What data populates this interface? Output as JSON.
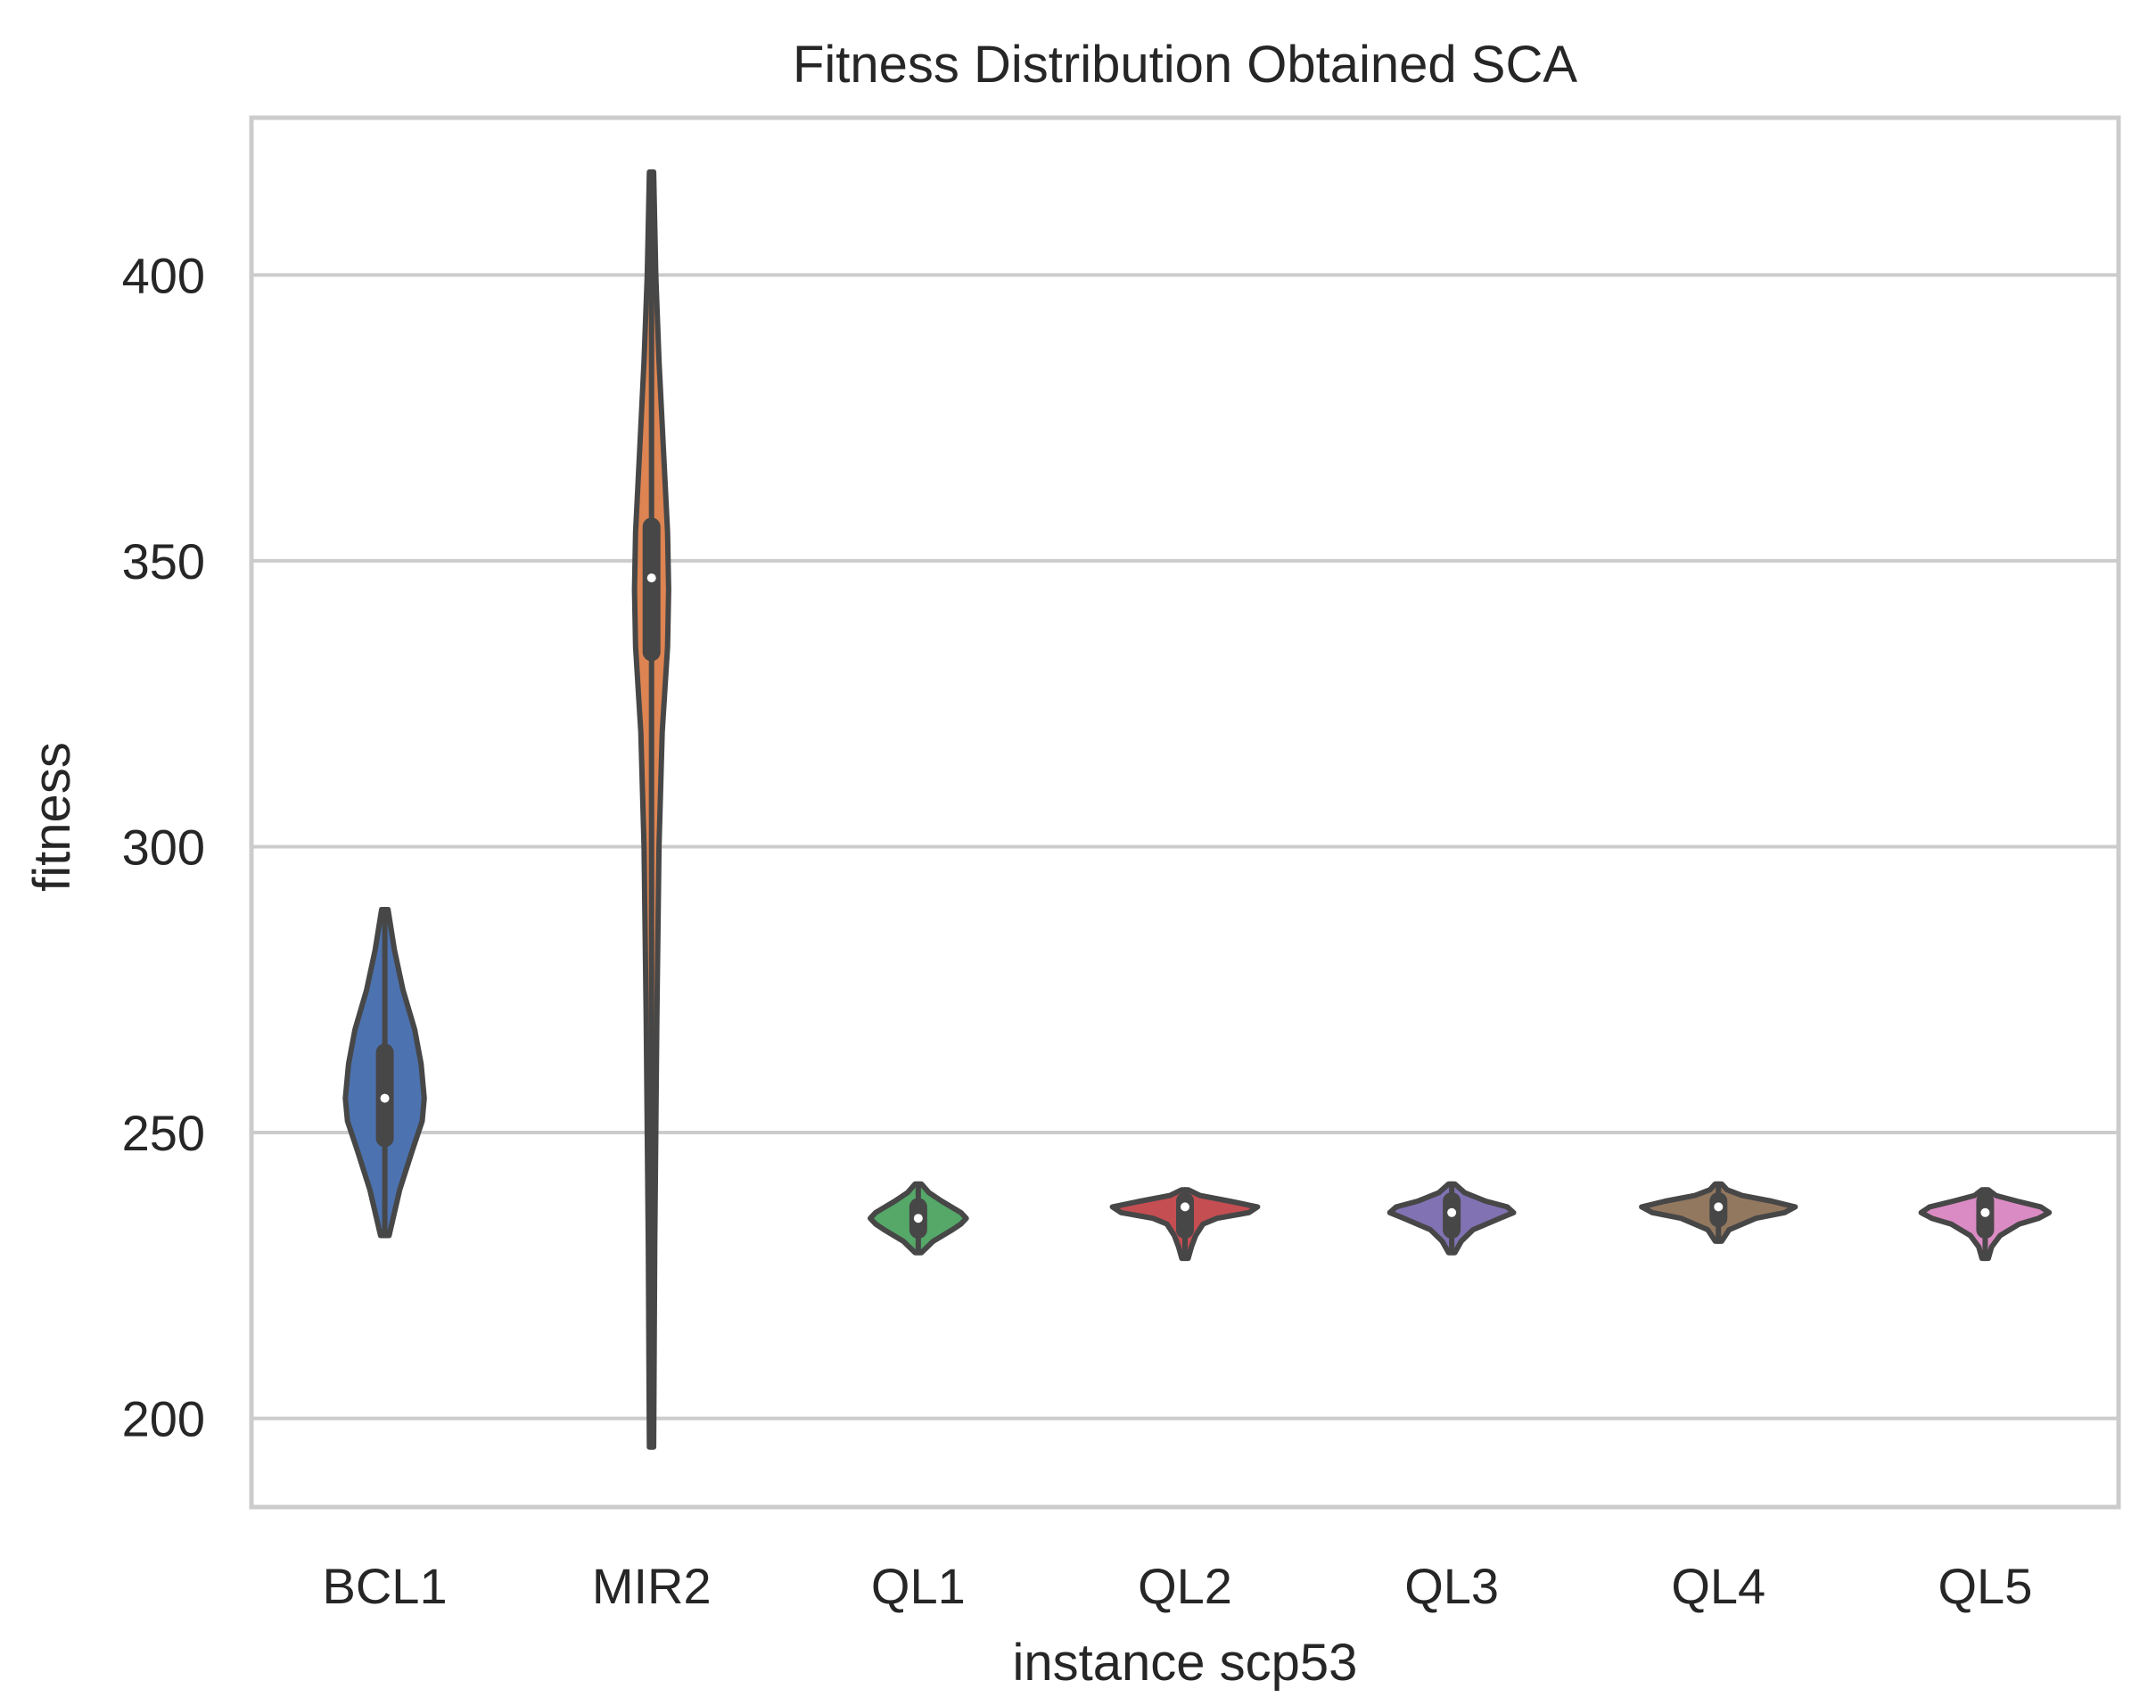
{
  "chart_data": {
    "type": "violin",
    "title": "Fitness Distribution Obtained SCA",
    "xlabel": "instance scp53",
    "ylabel": "fitness",
    "ylim": [
      184.5,
      427.5
    ],
    "yticks": [
      200,
      250,
      300,
      350,
      400
    ],
    "grid": true,
    "categories": [
      "BCL1",
      "MIR2",
      "QL1",
      "QL2",
      "QL3",
      "QL4",
      "QL5"
    ],
    "series": [
      {
        "name": "BCL1",
        "color": "#4c72b0",
        "min": 232,
        "q1": 249,
        "median": 256,
        "q3": 264,
        "max": 289,
        "density": [
          [
            232,
            0.04
          ],
          [
            240,
            0.14
          ],
          [
            247,
            0.26
          ],
          [
            252,
            0.35
          ],
          [
            256,
            0.37
          ],
          [
            262,
            0.34
          ],
          [
            268,
            0.28
          ],
          [
            275,
            0.17
          ],
          [
            282,
            0.09
          ],
          [
            289,
            0.03
          ]
        ]
      },
      {
        "name": "MIR2",
        "color": "#dd8452",
        "min": 195,
        "q1": 334,
        "median": 347,
        "q3": 356,
        "max": 418,
        "density": [
          [
            195,
            0.02
          ],
          [
            230,
            0.03
          ],
          [
            270,
            0.05
          ],
          [
            300,
            0.07
          ],
          [
            320,
            0.1
          ],
          [
            335,
            0.15
          ],
          [
            345,
            0.16
          ],
          [
            355,
            0.15
          ],
          [
            370,
            0.11
          ],
          [
            385,
            0.07
          ],
          [
            400,
            0.04
          ],
          [
            418,
            0.02
          ]
        ]
      },
      {
        "name": "QL1",
        "color": "#55a868",
        "min": 229,
        "q1": 233,
        "median": 235,
        "q3": 237,
        "max": 241,
        "density": [
          [
            229,
            0.03
          ],
          [
            231,
            0.14
          ],
          [
            233,
            0.32
          ],
          [
            234,
            0.4
          ],
          [
            235,
            0.45
          ],
          [
            236,
            0.4
          ],
          [
            238,
            0.22
          ],
          [
            239.5,
            0.1
          ],
          [
            241,
            0.03
          ]
        ]
      },
      {
        "name": "QL2",
        "color": "#c44e52",
        "min": 228,
        "q1": 233,
        "median": 237,
        "q3": 238,
        "max": 240,
        "density": [
          [
            228,
            0.03
          ],
          [
            230,
            0.06
          ],
          [
            232,
            0.1
          ],
          [
            234,
            0.17
          ],
          [
            235,
            0.3
          ],
          [
            236,
            0.6
          ],
          [
            237,
            0.68
          ],
          [
            238,
            0.42
          ],
          [
            239,
            0.14
          ],
          [
            240,
            0.03
          ]
        ]
      },
      {
        "name": "QL3",
        "color": "#8172b3",
        "min": 229,
        "q1": 233,
        "median": 236,
        "q3": 238,
        "max": 241,
        "density": [
          [
            229,
            0.03
          ],
          [
            231,
            0.09
          ],
          [
            233,
            0.2
          ],
          [
            235,
            0.45
          ],
          [
            236,
            0.58
          ],
          [
            237,
            0.52
          ],
          [
            238,
            0.32
          ],
          [
            239.5,
            0.12
          ],
          [
            241,
            0.03
          ]
        ]
      },
      {
        "name": "QL4",
        "color": "#937860",
        "min": 231,
        "q1": 235,
        "median": 237,
        "q3": 238,
        "max": 241,
        "density": [
          [
            231,
            0.03
          ],
          [
            233,
            0.1
          ],
          [
            235,
            0.35
          ],
          [
            236,
            0.62
          ],
          [
            237,
            0.72
          ],
          [
            238,
            0.5
          ],
          [
            239,
            0.22
          ],
          [
            240,
            0.08
          ],
          [
            241,
            0.03
          ]
        ]
      },
      {
        "name": "QL5",
        "color": "#da8bc3",
        "min": 228,
        "q1": 233,
        "median": 236,
        "q3": 238,
        "max": 240,
        "density": [
          [
            228,
            0.03
          ],
          [
            230,
            0.06
          ],
          [
            232,
            0.14
          ],
          [
            234,
            0.32
          ],
          [
            235,
            0.5
          ],
          [
            236,
            0.6
          ],
          [
            237,
            0.52
          ],
          [
            238,
            0.3
          ],
          [
            239,
            0.1
          ],
          [
            240,
            0.03
          ]
        ]
      }
    ]
  }
}
